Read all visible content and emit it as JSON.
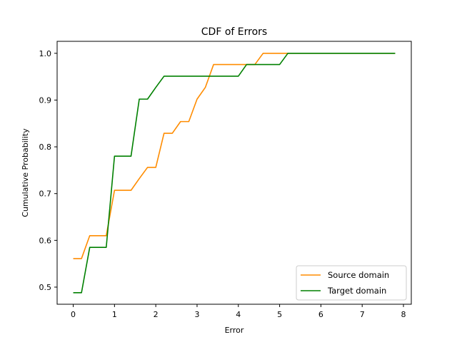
{
  "chart_data": {
    "type": "line",
    "title": "CDF of Errors",
    "xlabel": "Error",
    "ylabel": "Cumulative Probability",
    "xlim": [
      -0.39,
      8.19
    ],
    "ylim": [
      0.4634,
      1.0256
    ],
    "xticks": [
      0,
      1,
      2,
      3,
      4,
      5,
      6,
      7,
      8
    ],
    "yticks": [
      0.5,
      0.6,
      0.7,
      0.8,
      0.9,
      1.0
    ],
    "xtick_labels": [
      "0",
      "1",
      "2",
      "3",
      "4",
      "5",
      "6",
      "7",
      "8"
    ],
    "ytick_labels": [
      "0.5",
      "0.6",
      "0.7",
      "0.8",
      "0.9",
      "1.0"
    ],
    "grid": false,
    "legend_position": "lower-right",
    "series": [
      {
        "name": "Source domain",
        "color": "#ff8c00",
        "x": [
          0,
          0.2,
          0.4,
          0.6,
          0.8,
          1.0,
          1.2,
          1.4,
          1.6,
          1.8,
          2.0,
          2.2,
          2.4,
          2.6,
          2.8,
          3.0,
          3.2,
          3.4,
          3.6,
          3.8,
          4.0,
          4.2,
          4.4,
          4.6,
          4.8,
          5.0,
          5.2,
          7.8
        ],
        "y": [
          0.561,
          0.561,
          0.61,
          0.61,
          0.61,
          0.707,
          0.707,
          0.707,
          0.732,
          0.756,
          0.756,
          0.829,
          0.829,
          0.854,
          0.854,
          0.902,
          0.927,
          0.976,
          0.976,
          0.976,
          0.976,
          0.976,
          0.976,
          1.0,
          1.0,
          1.0,
          1.0,
          1.0
        ]
      },
      {
        "name": "Target domain",
        "color": "#008000",
        "x": [
          0,
          0.2,
          0.4,
          0.6,
          0.8,
          1.0,
          1.2,
          1.4,
          1.6,
          1.8,
          2.0,
          2.2,
          2.4,
          2.6,
          2.8,
          3.0,
          3.2,
          3.4,
          3.6,
          3.8,
          4.0,
          4.2,
          4.4,
          4.6,
          4.8,
          5.0,
          5.2,
          7.8
        ],
        "y": [
          0.488,
          0.488,
          0.585,
          0.585,
          0.585,
          0.78,
          0.78,
          0.78,
          0.902,
          0.902,
          0.927,
          0.951,
          0.951,
          0.951,
          0.951,
          0.951,
          0.951,
          0.951,
          0.951,
          0.951,
          0.951,
          0.976,
          0.976,
          0.976,
          0.976,
          0.976,
          1.0,
          1.0
        ]
      }
    ]
  }
}
